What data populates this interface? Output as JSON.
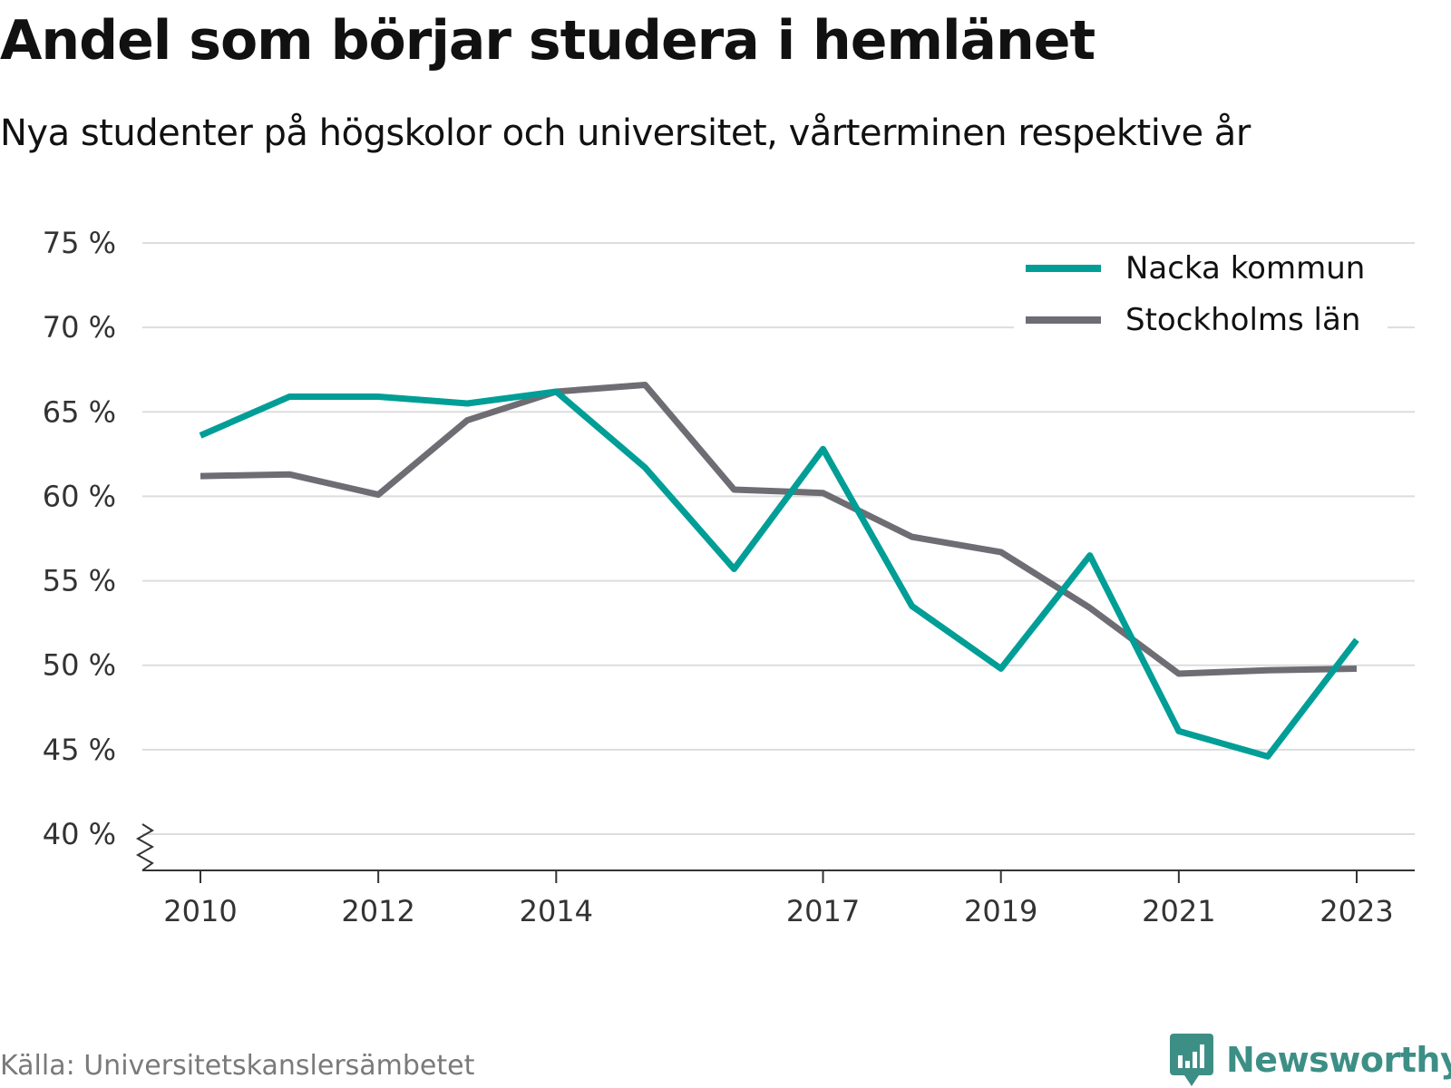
{
  "header": {
    "title": "Andel som börjar studera i hemlänet",
    "subtitle": "Nya studenter på högskolor och universitet, vårterminen respektive år"
  },
  "footer": {
    "source": "Källa: Universitetskanslersämbetet",
    "brand": "Newsworthy"
  },
  "colors": {
    "nacka": "#009e96",
    "stockholm": "#6e6d74",
    "grid": "#dddddd",
    "axis": "#333333",
    "brand": "#3d8f86"
  },
  "chart_data": {
    "type": "line",
    "title": "Andel som börjar studera i hemlänet",
    "subtitle": "Nya studenter på högskolor och universitet, vårterminen respektive år",
    "x": [
      2010,
      2011,
      2012,
      2013,
      2014,
      2015,
      2016,
      2017,
      2018,
      2019,
      2020,
      2021,
      2022,
      2023
    ],
    "x_tick_labels": [
      "2010",
      "2012",
      "2014",
      "2017",
      "2019",
      "2021",
      "2023"
    ],
    "y_tick_labels": [
      "40 %",
      "45 %",
      "50 %",
      "55 %",
      "60 %",
      "65 %",
      "70 %",
      "75 %"
    ],
    "ylim": [
      40,
      75
    ],
    "y_axis_break": true,
    "grid": true,
    "legend_position": "top-right",
    "series": [
      {
        "name": "Nacka kommun",
        "color": "#009e96",
        "values": [
          63.6,
          65.9,
          65.9,
          65.5,
          66.2,
          61.7,
          55.7,
          62.8,
          53.5,
          49.8,
          56.5,
          46.1,
          44.6,
          51.5
        ]
      },
      {
        "name": "Stockholms län",
        "color": "#6e6d74",
        "values": [
          61.2,
          61.3,
          60.1,
          64.5,
          66.2,
          66.6,
          60.4,
          60.2,
          57.6,
          56.7,
          53.4,
          49.5,
          49.7,
          49.8
        ]
      }
    ]
  }
}
